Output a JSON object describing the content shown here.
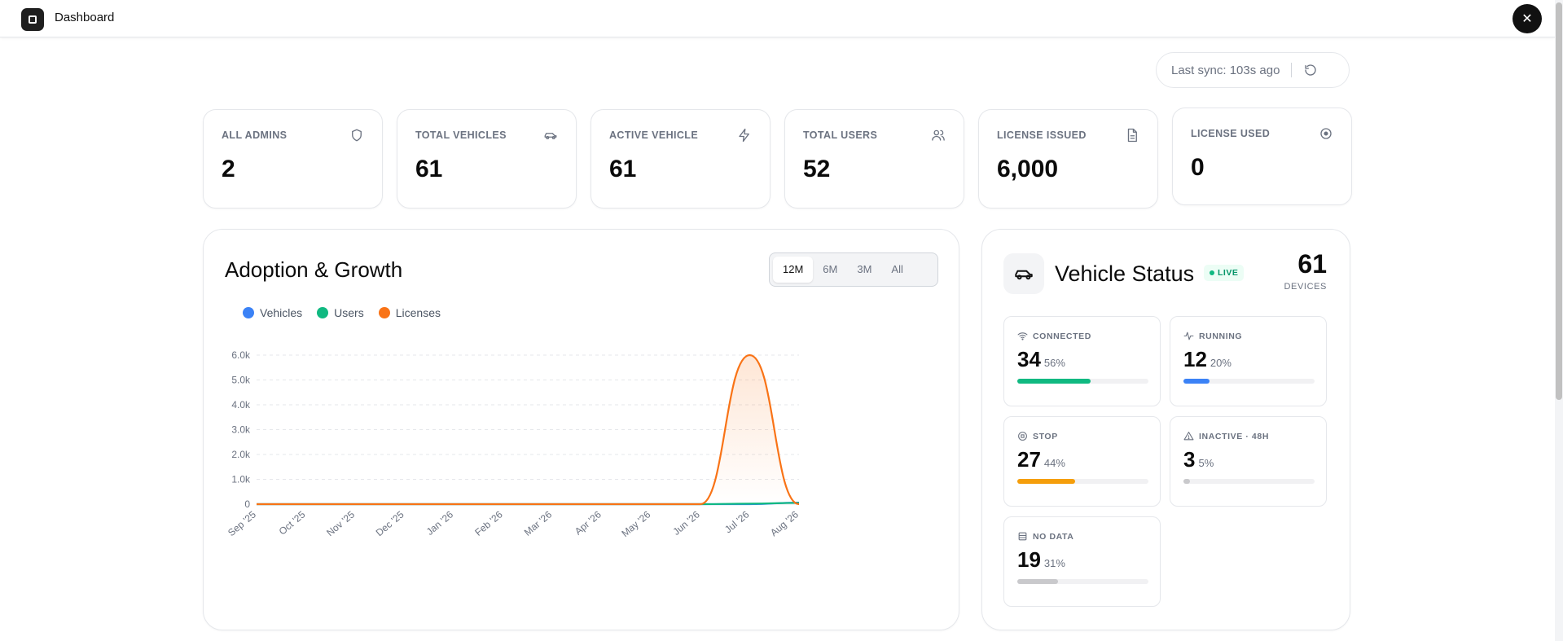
{
  "app": {
    "title": "Dashboard"
  },
  "sync": {
    "text": "Last sync: 103s ago"
  },
  "stats": [
    {
      "label": "ALL ADMINS",
      "value": "2",
      "icon": "shield-icon"
    },
    {
      "label": "TOTAL VEHICLES",
      "value": "61",
      "icon": "car-icon"
    },
    {
      "label": "ACTIVE VEHICLE",
      "value": "61",
      "icon": "lightning-icon"
    },
    {
      "label": "TOTAL USERS",
      "value": "52",
      "icon": "users-icon"
    },
    {
      "label": "LICENSE ISSUED",
      "value": "6,000",
      "icon": "document-icon"
    },
    {
      "label": "LICENSE USED",
      "value": "0",
      "icon": "target-icon"
    }
  ],
  "adoption": {
    "title": "Adoption & Growth",
    "ranges": [
      "12M",
      "6M",
      "3M",
      "All"
    ],
    "selected_range": "12M"
  },
  "chart_data": {
    "type": "line",
    "title": "Adoption & Growth",
    "x": [
      "Sep '25",
      "Oct '25",
      "Nov '25",
      "Dec '25",
      "Jan '26",
      "Feb '26",
      "Mar '26",
      "Apr '26",
      "May '26",
      "Jun '26",
      "Jul '26",
      "Aug '26"
    ],
    "y_ticks": [
      "0",
      "1.0k",
      "2.0k",
      "3.0k",
      "4.0k",
      "5.0k",
      "6.0k"
    ],
    "ylim": [
      0,
      6000
    ],
    "series": [
      {
        "name": "Vehicles",
        "color": "#3b82f6",
        "values": [
          0,
          0,
          0,
          0,
          0,
          0,
          0,
          0,
          0,
          0,
          0,
          61
        ]
      },
      {
        "name": "Users",
        "color": "#10b981",
        "values": [
          0,
          0,
          0,
          0,
          0,
          0,
          0,
          0,
          0,
          0,
          20,
          52
        ]
      },
      {
        "name": "Licenses",
        "color": "#f97316",
        "values": [
          0,
          0,
          0,
          0,
          0,
          0,
          0,
          0,
          0,
          0,
          6000,
          0
        ]
      }
    ],
    "grid": true,
    "legend": "top-left"
  },
  "vehicle_status": {
    "title": "Vehicle Status",
    "live_label": "LIVE",
    "count": "61",
    "count_label": "DEVICES",
    "tiles": [
      {
        "label": "CONNECTED",
        "value": "34",
        "pct": "56%",
        "fraction": 0.56,
        "color": "#10b981",
        "icon": "wifi-icon"
      },
      {
        "label": "RUNNING",
        "value": "12",
        "pct": "20%",
        "fraction": 0.2,
        "color": "#3b82f6",
        "icon": "activity-icon"
      },
      {
        "label": "STOP",
        "value": "27",
        "pct": "44%",
        "fraction": 0.44,
        "color": "#f59e0b",
        "icon": "stop-circle-icon"
      },
      {
        "label": "INACTIVE · 48H",
        "value": "3",
        "pct": "5%",
        "fraction": 0.05,
        "color": "#c9c9cc",
        "icon": "warning-icon"
      },
      {
        "label": "NO DATA",
        "value": "19",
        "pct": "31%",
        "fraction": 0.31,
        "color": "#c9c9cc",
        "icon": "database-icon"
      }
    ]
  }
}
